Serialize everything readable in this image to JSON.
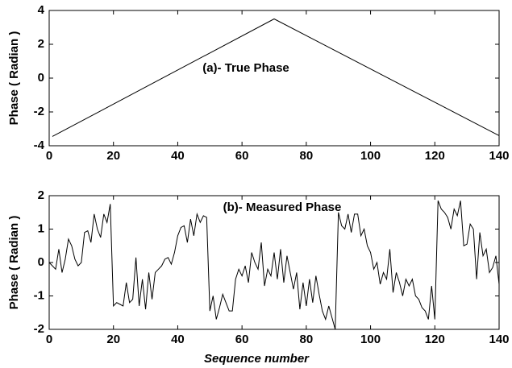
{
  "chart_data": [
    {
      "type": "line",
      "title": "(a)- True Phase",
      "ylabel": "Phase ( Radian )",
      "x": [
        1,
        70,
        140
      ],
      "series": [
        {
          "color": "#000000",
          "values": [
            -3.45,
            3.5,
            -3.4
          ]
        }
      ],
      "xlim": [
        0,
        140
      ],
      "xticks": [
        0,
        20,
        40,
        60,
        80,
        100,
        120,
        140
      ],
      "ylim": [
        -4,
        4
      ],
      "yticks": [
        -4,
        -2,
        0,
        2,
        4
      ]
    },
    {
      "type": "line",
      "title": "(b)- Measured Phase",
      "ylabel": "Phase ( Radian )",
      "xlabel": "Sequence number",
      "x": [
        0,
        1,
        2,
        3,
        4,
        5,
        6,
        7,
        8,
        9,
        10,
        11,
        12,
        13,
        14,
        15,
        16,
        17,
        18,
        19,
        20,
        21,
        22,
        23,
        24,
        25,
        26,
        27,
        28,
        29,
        30,
        31,
        32,
        33,
        34,
        35,
        36,
        37,
        38,
        39,
        40,
        41,
        42,
        43,
        44,
        45,
        46,
        47,
        48,
        49,
        50,
        51,
        52,
        53,
        54,
        55,
        56,
        57,
        58,
        59,
        60,
        61,
        62,
        63,
        64,
        65,
        66,
        67,
        68,
        69,
        70,
        71,
        72,
        73,
        74,
        75,
        76,
        77,
        78,
        79,
        80,
        81,
        82,
        83,
        84,
        85,
        86,
        87,
        88,
        89,
        90,
        91,
        92,
        93,
        94,
        95,
        96,
        97,
        98,
        99,
        100,
        101,
        102,
        103,
        104,
        105,
        106,
        107,
        108,
        109,
        110,
        111,
        112,
        113,
        114,
        115,
        116,
        117,
        118,
        119,
        120,
        121,
        122,
        123,
        124,
        125,
        126,
        127,
        128,
        129,
        130,
        131,
        132,
        133,
        134,
        135,
        136,
        137,
        138,
        139,
        140
      ],
      "series": [
        {
          "color": "#000000",
          "values": [
            0,
            -0.1,
            -0.2,
            0.4,
            -0.3,
            0.1,
            0.7,
            0.5,
            0.1,
            -0.1,
            0,
            0.9,
            0.95,
            0.6,
            1.45,
            1.0,
            0.75,
            1.45,
            1.2,
            1.75,
            -1.3,
            -1.2,
            -1.25,
            -1.3,
            -0.6,
            -1.2,
            -1.1,
            0.15,
            -1.3,
            -0.5,
            -1.4,
            -0.3,
            -1.1,
            -0.3,
            -0.2,
            -0.1,
            0.1,
            0.15,
            -0.05,
            0.3,
            0.8,
            1.05,
            1.1,
            0.6,
            1.3,
            0.8,
            1.45,
            1.2,
            1.4,
            1.35,
            -1.45,
            -1.0,
            -1.7,
            -1.35,
            -0.95,
            -1.2,
            -1.45,
            -1.45,
            -0.5,
            -0.2,
            -0.4,
            -0.1,
            -0.6,
            0.3,
            0,
            -0.2,
            0.6,
            -0.7,
            -0.2,
            -0.4,
            0.3,
            -0.5,
            0.4,
            -0.6,
            0.2,
            -0.3,
            -0.8,
            -0.3,
            -1.4,
            -0.6,
            -1.3,
            -0.5,
            -1.2,
            -0.4,
            -0.95,
            -1.45,
            -1.7,
            -1.3,
            -1.65,
            -2.0,
            1.5,
            1.1,
            1.0,
            1.45,
            0.9,
            1.45,
            1.45,
            0.8,
            1.0,
            0.5,
            0.3,
            -0.2,
            0,
            -0.65,
            -0.3,
            -0.5,
            0.4,
            -0.9,
            -0.3,
            -0.6,
            -1.0,
            -0.5,
            -0.7,
            -0.5,
            -1.0,
            -1.1,
            -1.35,
            -1.45,
            -1.7,
            -0.7,
            -1.7,
            1.85,
            1.6,
            1.5,
            1.35,
            1.0,
            1.6,
            1.4,
            1.85,
            0.5,
            0.55,
            1.15,
            1.0,
            -0.5,
            0.9,
            0.2,
            0.4,
            -0.3,
            -0.15,
            0.2,
            -0.65
          ]
        }
      ],
      "xlim": [
        0,
        140
      ],
      "xticks": [
        0,
        20,
        40,
        60,
        80,
        100,
        120,
        140
      ],
      "ylim": [
        -2,
        2
      ],
      "yticks": [
        -2,
        -1,
        0,
        1,
        2
      ]
    }
  ]
}
